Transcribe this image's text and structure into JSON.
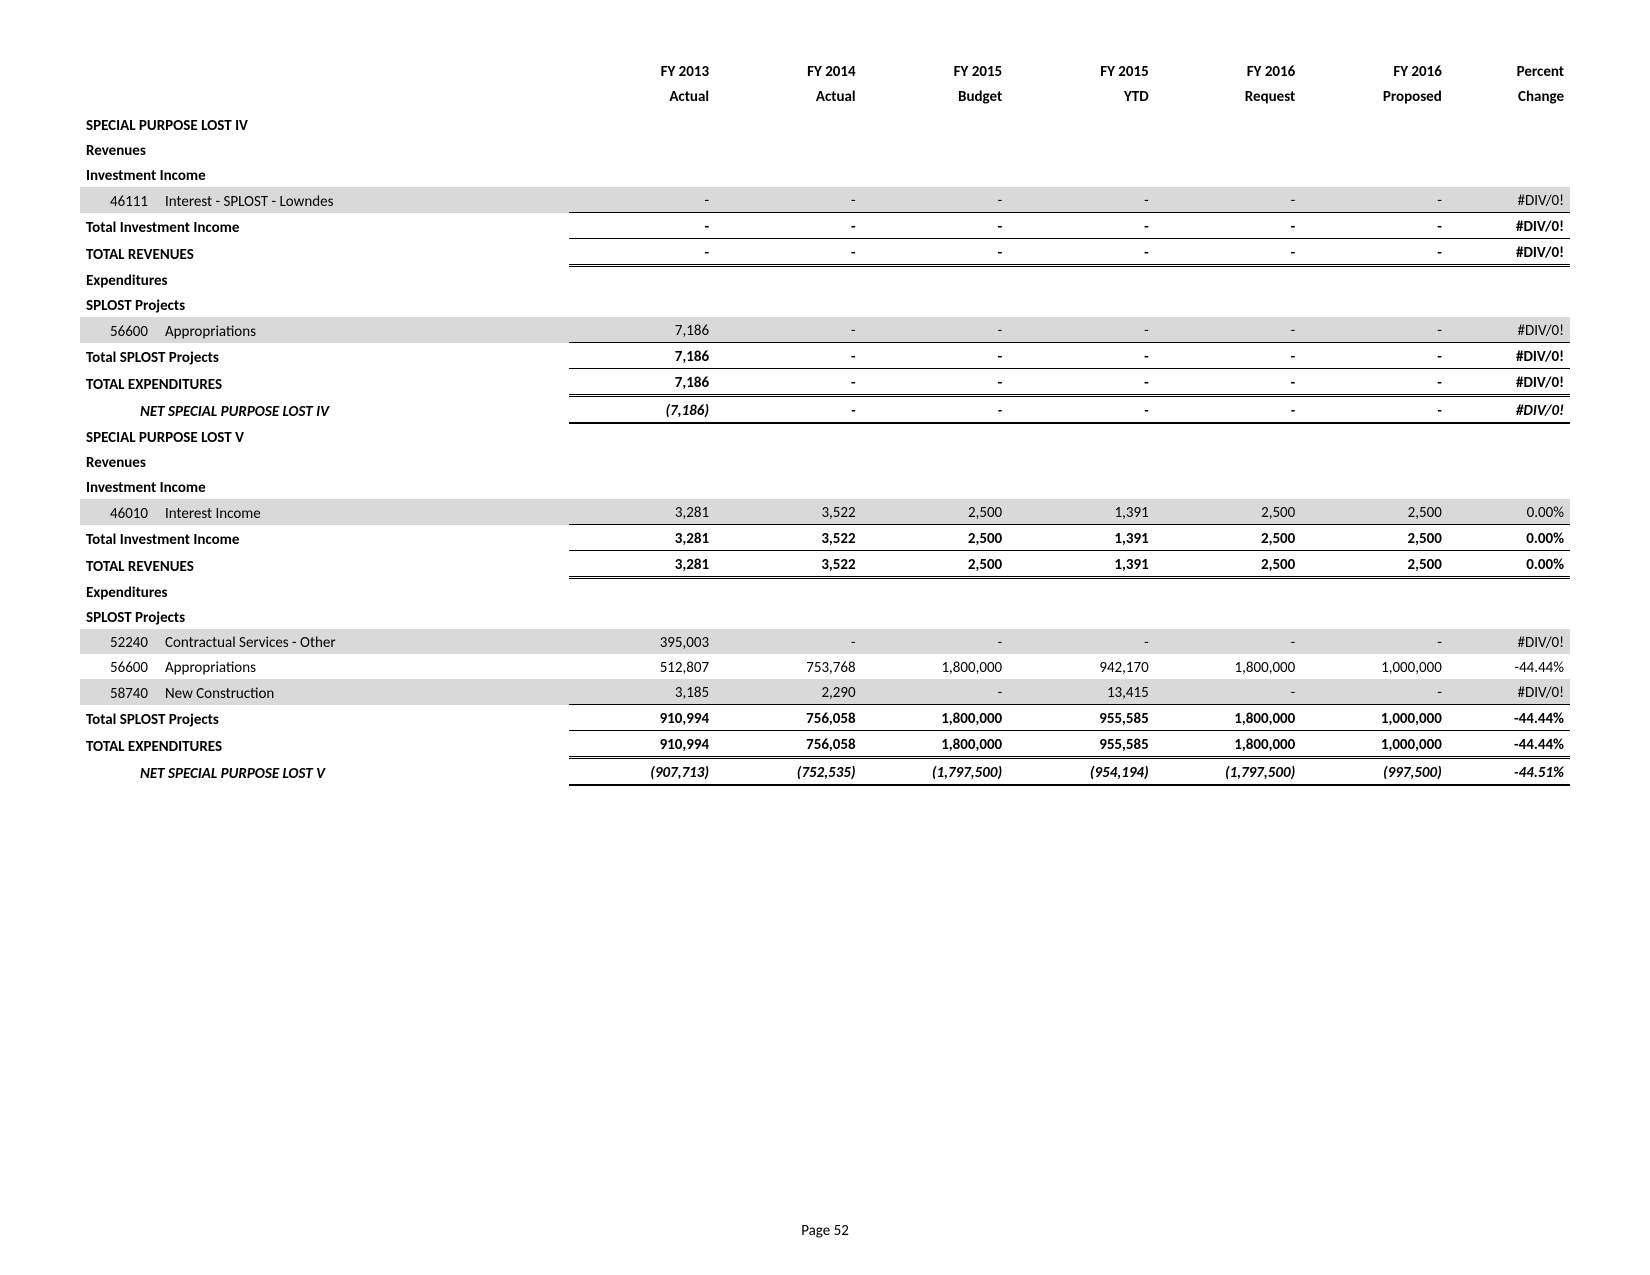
{
  "columns": {
    "c1_top": "FY 2013",
    "c1_bot": "Actual",
    "c2_top": "FY 2014",
    "c2_bot": "Actual",
    "c3_top": "FY 2015",
    "c3_bot": "Budget",
    "c4_top": "FY 2015",
    "c4_bot": "YTD",
    "c5_top": "FY 2016",
    "c5_bot": "Request",
    "c6_top": "FY 2016",
    "c6_bot": "Proposed",
    "c7_top": "Percent",
    "c7_bot": "Change"
  },
  "s4": {
    "title": "SPECIAL PURPOSE LOST IV",
    "rev": "Revenues",
    "inv": "Investment Income",
    "r1_code": "46111",
    "r1_label": "Interest - SPLOST - Lowndes",
    "r1": {
      "c1": "-",
      "c2": "-",
      "c3": "-",
      "c4": "-",
      "c5": "-",
      "c6": "-",
      "pct": "#DIV/0!"
    },
    "tot_inv": "Total Investment Income",
    "tot_inv_v": {
      "c1": "-",
      "c2": "-",
      "c3": "-",
      "c4": "-",
      "c5": "-",
      "c6": "-",
      "pct": "#DIV/0!"
    },
    "tot_rev": "TOTAL REVENUES",
    "tot_rev_v": {
      "c1": "-",
      "c2": "-",
      "c3": "-",
      "c4": "-",
      "c5": "-",
      "c6": "-",
      "pct": "#DIV/0!"
    },
    "exp": "Expenditures",
    "spl": "SPLOST Projects",
    "e1_code": "56600",
    "e1_label": "Appropriations",
    "e1": {
      "c1": "7,186",
      "c2": "-",
      "c3": "-",
      "c4": "-",
      "c5": "-",
      "c6": "-",
      "pct": "#DIV/0!"
    },
    "tot_spl": "Total SPLOST Projects",
    "tot_spl_v": {
      "c1": "7,186",
      "c2": "-",
      "c3": "-",
      "c4": "-",
      "c5": "-",
      "c6": "-",
      "pct": "#DIV/0!"
    },
    "tot_exp": "TOTAL EXPENDITURES",
    "tot_exp_v": {
      "c1": "7,186",
      "c2": "-",
      "c3": "-",
      "c4": "-",
      "c5": "-",
      "c6": "-",
      "pct": "#DIV/0!"
    },
    "net": "NET SPECIAL PURPOSE LOST IV",
    "net_v": {
      "c1": "(7,186)",
      "c2": "-",
      "c3": "-",
      "c4": "-",
      "c5": "-",
      "c6": "-",
      "pct": "#DIV/0!"
    }
  },
  "s5": {
    "title": "SPECIAL PURPOSE LOST V",
    "rev": "Revenues",
    "inv": "Investment Income",
    "r1_code": "46010",
    "r1_label": "Interest Income",
    "r1": {
      "c1": "3,281",
      "c2": "3,522",
      "c3": "2,500",
      "c4": "1,391",
      "c5": "2,500",
      "c6": "2,500",
      "pct": "0.00%"
    },
    "tot_inv": "Total Investment Income",
    "tot_inv_v": {
      "c1": "3,281",
      "c2": "3,522",
      "c3": "2,500",
      "c4": "1,391",
      "c5": "2,500",
      "c6": "2,500",
      "pct": "0.00%"
    },
    "tot_rev": "TOTAL REVENUES",
    "tot_rev_v": {
      "c1": "3,281",
      "c2": "3,522",
      "c3": "2,500",
      "c4": "1,391",
      "c5": "2,500",
      "c6": "2,500",
      "pct": "0.00%"
    },
    "exp": "Expenditures",
    "spl": "SPLOST Projects",
    "e1_code": "52240",
    "e1_label": "Contractual Services - Other",
    "e1": {
      "c1": "395,003",
      "c2": "-",
      "c3": "-",
      "c4": "-",
      "c5": "-",
      "c6": "-",
      "pct": "#DIV/0!"
    },
    "e2_code": "56600",
    "e2_label": "Appropriations",
    "e2": {
      "c1": "512,807",
      "c2": "753,768",
      "c3": "1,800,000",
      "c4": "942,170",
      "c5": "1,800,000",
      "c6": "1,000,000",
      "pct": "-44.44%"
    },
    "e3_code": "58740",
    "e3_label": "New Construction",
    "e3": {
      "c1": "3,185",
      "c2": "2,290",
      "c3": "-",
      "c4": "13,415",
      "c5": "-",
      "c6": "-",
      "pct": "#DIV/0!"
    },
    "tot_spl": "Total SPLOST Projects",
    "tot_spl_v": {
      "c1": "910,994",
      "c2": "756,058",
      "c3": "1,800,000",
      "c4": "955,585",
      "c5": "1,800,000",
      "c6": "1,000,000",
      "pct": "-44.44%"
    },
    "tot_exp": "TOTAL EXPENDITURES",
    "tot_exp_v": {
      "c1": "910,994",
      "c2": "756,058",
      "c3": "1,800,000",
      "c4": "955,585",
      "c5": "1,800,000",
      "c6": "1,000,000",
      "pct": "-44.44%"
    },
    "net": "NET SPECIAL PURPOSE LOST V",
    "net_v": {
      "c1": "(907,713)",
      "c2": "(752,535)",
      "c3": "(1,797,500)",
      "c4": "(954,194)",
      "c5": "(1,797,500)",
      "c6": "(997,500)",
      "pct": "-44.51%"
    }
  },
  "page": "Page 52"
}
